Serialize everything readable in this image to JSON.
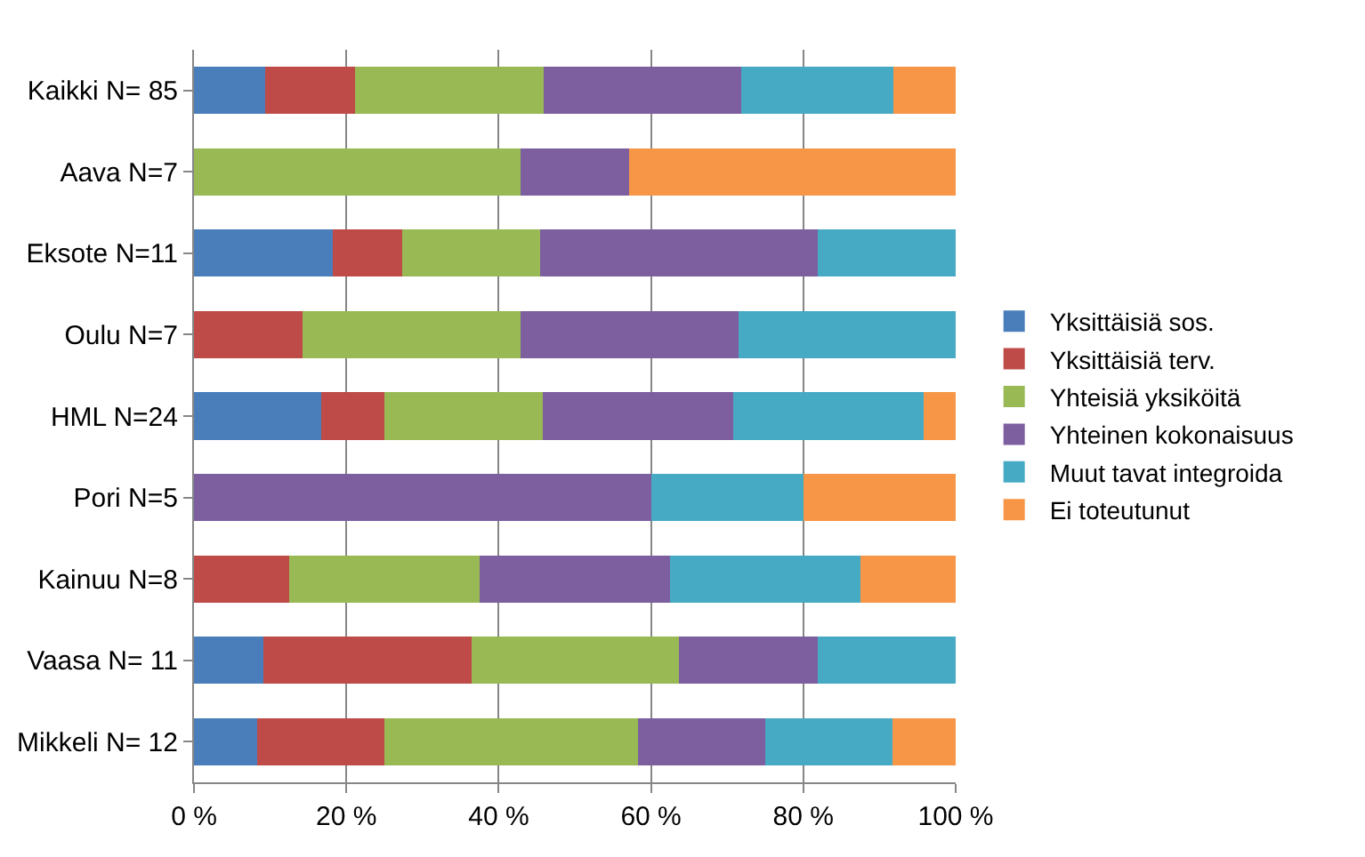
{
  "chart_data": {
    "type": "bar",
    "orientation": "horizontal",
    "stacked": true,
    "categories": [
      "Kaikki N= 85",
      "Aava N=7",
      "Eksote N=11",
      "Oulu N=7",
      "HML N=24",
      "Pori N=5",
      "Kainuu N=8",
      "Vaasa N= 11",
      "Mikkeli N= 12"
    ],
    "series": [
      {
        "name": "Yksittäisiä sos.",
        "color": "#4a7ebb",
        "values": [
          9.4,
          0,
          18.2,
          0,
          16.7,
          0,
          0,
          9.1,
          8.3
        ]
      },
      {
        "name": "Yksittäisiä terv.",
        "color": "#be4b48",
        "values": [
          11.8,
          0,
          9.1,
          14.3,
          8.3,
          0,
          12.5,
          27.3,
          16.7
        ]
      },
      {
        "name": "Yhteisiä yksiköitä",
        "color": "#98b954",
        "values": [
          24.7,
          42.9,
          18.2,
          28.6,
          20.8,
          0,
          25,
          27.3,
          33.3
        ]
      },
      {
        "name": "Yhteinen kokonaisuus",
        "color": "#7d5fa0",
        "values": [
          25.9,
          14.2,
          36.4,
          28.6,
          25,
          60,
          25,
          18.2,
          16.7
        ]
      },
      {
        "name": "Muut tavat integroida",
        "color": "#46aac5",
        "values": [
          20,
          0,
          18.1,
          28.5,
          25,
          20,
          25,
          18.1,
          16.7
        ]
      },
      {
        "name": "Ei toteutunut",
        "color": "#f79646",
        "values": [
          8.2,
          42.9,
          0,
          0,
          4.2,
          20,
          12.5,
          0,
          8.3
        ]
      }
    ],
    "xlim": [
      0,
      100
    ],
    "xticks": [
      {
        "value": 0,
        "label": "0 %"
      },
      {
        "value": 20,
        "label": "20 %"
      },
      {
        "value": 40,
        "label": "40 %"
      },
      {
        "value": 60,
        "label": "60 %"
      },
      {
        "value": 80,
        "label": "80 %"
      },
      {
        "value": 100,
        "label": "100 %"
      }
    ],
    "grid": "x",
    "legend": "right"
  }
}
